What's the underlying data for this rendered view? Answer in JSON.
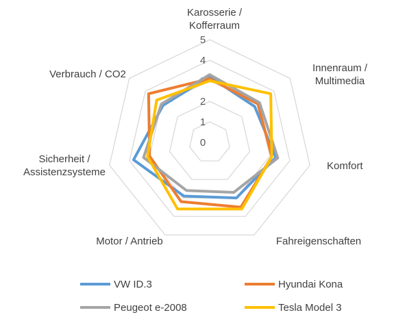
{
  "chart_data": {
    "type": "radar",
    "axes": [
      [
        "Karosserie /",
        "Kofferraum"
      ],
      [
        "Innenraum /",
        "Multimedia"
      ],
      [
        "Komfort"
      ],
      [
        "Fahreigenschaften"
      ],
      [
        "Motor / Antrieb"
      ],
      [
        "Sicherheit /",
        "Assistenzsysteme"
      ],
      [
        "Verbrauch / CO2"
      ]
    ],
    "range": [
      0,
      5
    ],
    "ticks": [
      "0",
      "1",
      "2",
      "3",
      "4",
      "5"
    ],
    "grid": true,
    "legend_position": "bottom",
    "series": [
      {
        "name": "VW ID.3",
        "color": "#5B9BD5",
        "values": [
          3.2,
          2.8,
          3.3,
          3.0,
          2.9,
          3.8,
          2.9
        ]
      },
      {
        "name": "Hyundai Kona",
        "color": "#ED7D31",
        "values": [
          3.1,
          3.0,
          3.1,
          3.5,
          3.2,
          3.0,
          3.8
        ]
      },
      {
        "name": "Peugeot e-2008",
        "color": "#A5A5A5",
        "values": [
          3.3,
          3.1,
          3.4,
          2.7,
          2.6,
          3.3,
          3.0
        ]
      },
      {
        "name": "Tesla Model 3",
        "color": "#FFC000",
        "values": [
          3.0,
          3.8,
          3.1,
          3.6,
          3.6,
          3.1,
          3.3
        ]
      }
    ]
  }
}
